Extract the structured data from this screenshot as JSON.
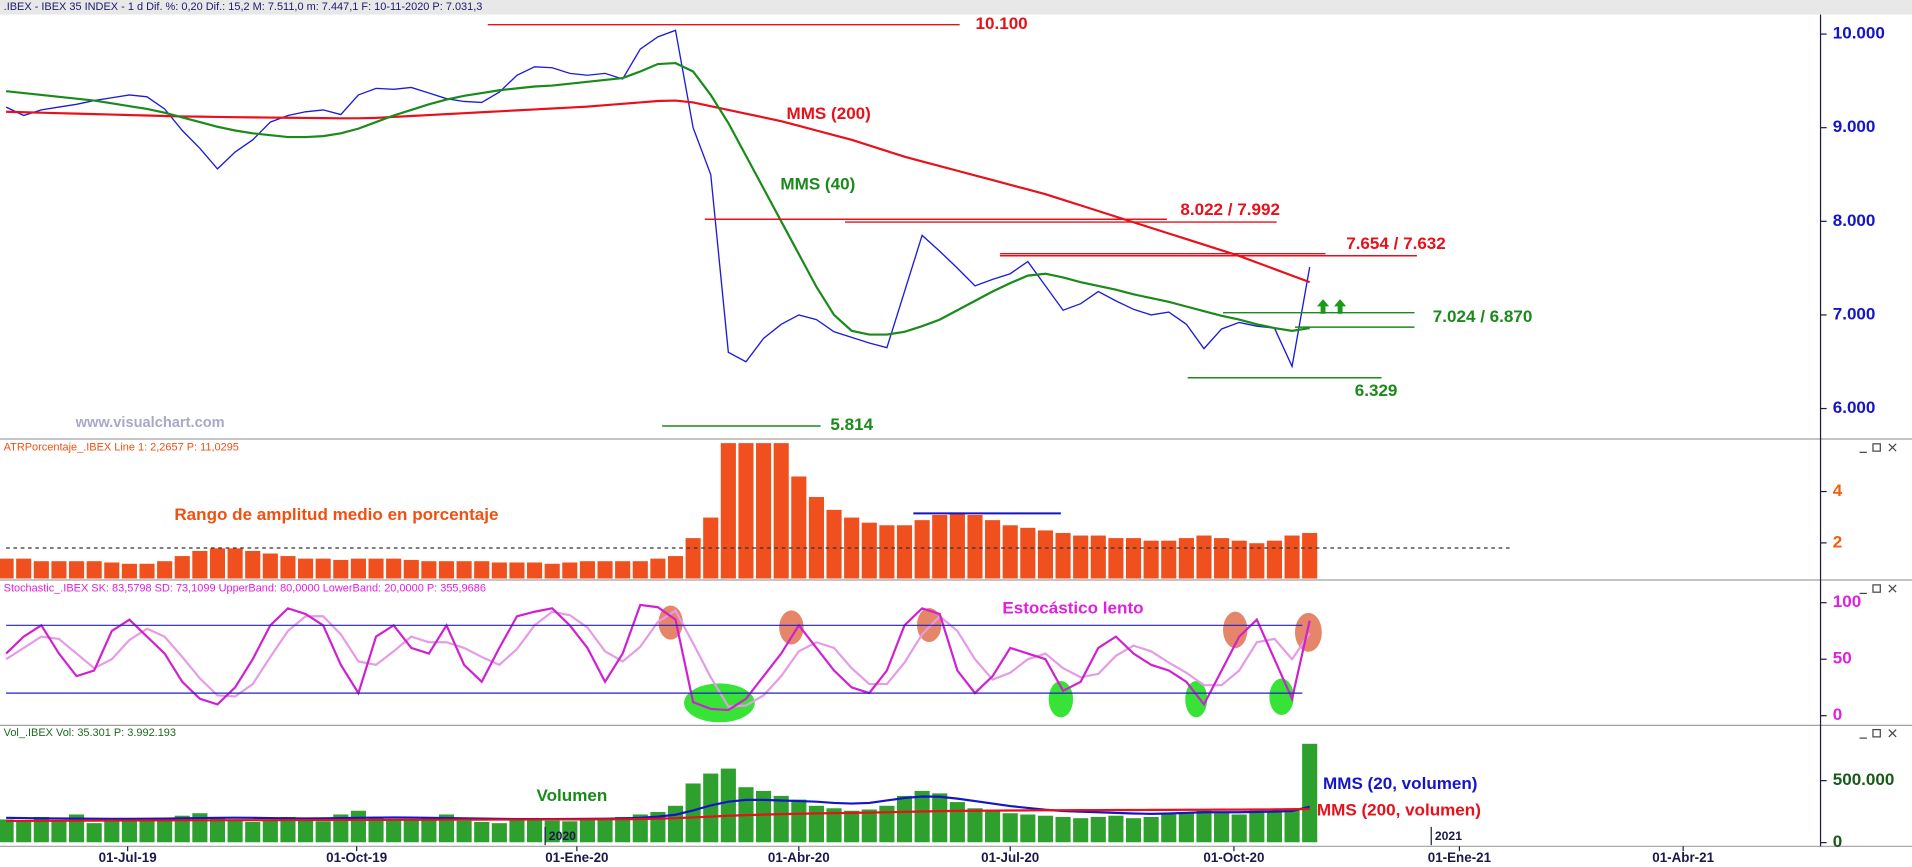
{
  "chart_data": [
    {
      "type": "line",
      "header": ".IBEX - IBEX 35 INDEX - 1 d  Dif. %: 0,20  Dif.: 15,2  M: 7.511,0  m: 7.447,1  F: 10-11-2020  P: 7.031,3",
      "watermark": "www.visualchart.com",
      "ylim": [
        5688,
        10208
      ],
      "yticks": [
        {
          "value": 6000,
          "label": "6.000"
        },
        {
          "value": 7000,
          "label": "7.000"
        },
        {
          "value": 8000,
          "label": "8.000"
        },
        {
          "value": 9000,
          "label": "9.000"
        },
        {
          "value": 10000,
          "label": "10.000"
        }
      ],
      "axis_color": "#1515c8",
      "series": [
        {
          "color": "#1c1cd8",
          "values": [
            9220,
            9130,
            9190,
            9220,
            9250,
            9290,
            9320,
            9350,
            9330,
            9200,
            8970,
            8780,
            8560,
            8740,
            8870,
            9060,
            9130,
            9170,
            9190,
            9140,
            9350,
            9420,
            9410,
            9430,
            9370,
            9310,
            9280,
            9270,
            9380,
            9560,
            9650,
            9640,
            9580,
            9560,
            9580,
            9520,
            9840,
            9970,
            10040,
            9000,
            8500,
            6600,
            6500,
            6750,
            6900,
            7000,
            6950,
            6820,
            6760,
            6700,
            6650,
            7250,
            7850,
            7680,
            7500,
            7310,
            7380,
            7440,
            7570,
            7310,
            7050,
            7120,
            7250,
            7150,
            7060,
            7000,
            7030,
            6900,
            6640,
            6850,
            6920,
            6880,
            6860,
            6450,
            7510
          ]
        },
        {
          "name": "MMS (200)",
          "color": "#e8101a",
          "values": [
            9170,
            9165,
            9160,
            9155,
            9150,
            9145,
            9140,
            9135,
            9130,
            9125,
            9120,
            9118,
            9115,
            9112,
            9110,
            9108,
            9106,
            9104,
            9102,
            9100,
            9100,
            9105,
            9115,
            9125,
            9135,
            9145,
            9155,
            9165,
            9175,
            9185,
            9195,
            9205,
            9215,
            9225,
            9240,
            9255,
            9270,
            9285,
            9290,
            9270,
            9230,
            9190,
            9150,
            9110,
            9070,
            9020,
            8970,
            8920,
            8870,
            8810,
            8750,
            8690,
            8640,
            8590,
            8540,
            8490,
            8440,
            8390,
            8340,
            8290,
            8230,
            8170,
            8110,
            8050,
            7990,
            7930,
            7870,
            7810,
            7750,
            7690,
            7630,
            7560,
            7490,
            7420,
            7350
          ]
        },
        {
          "name": "MMS (40)",
          "color": "#1a8a1a",
          "values": [
            9390,
            9370,
            9350,
            9330,
            9310,
            9290,
            9260,
            9230,
            9200,
            9160,
            9110,
            9060,
            9010,
            8970,
            8940,
            8920,
            8900,
            8900,
            8910,
            8940,
            8990,
            9060,
            9130,
            9190,
            9250,
            9300,
            9340,
            9370,
            9400,
            9420,
            9440,
            9450,
            9470,
            9490,
            9510,
            9530,
            9600,
            9680,
            9690,
            9600,
            9350,
            9050,
            8700,
            8350,
            8000,
            7650,
            7300,
            7000,
            6830,
            6790,
            6790,
            6820,
            6880,
            6950,
            7050,
            7150,
            7250,
            7340,
            7420,
            7440,
            7400,
            7350,
            7310,
            7270,
            7220,
            7180,
            7140,
            7090,
            7040,
            6990,
            6950,
            6900,
            6860,
            6830,
            6860
          ]
        }
      ],
      "levels": [
        {
          "label": "10.100",
          "values": [
            10100
          ],
          "color": "#e8101a"
        },
        {
          "label": "8.022 / 7.992",
          "values": [
            8022,
            7992
          ],
          "color": "#e8101a"
        },
        {
          "label": "7.654 / 7.632",
          "values": [
            7654,
            7632
          ],
          "color": "#e8101a"
        },
        {
          "label": "7.024 / 6.870",
          "values": [
            7024,
            6870
          ],
          "color": "#1a8a1a"
        },
        {
          "label": "6.329",
          "values": [
            6329
          ],
          "color": "#1a8a1a"
        },
        {
          "label": "5.814",
          "values": [
            5814
          ],
          "color": "#1a8a1a"
        }
      ]
    },
    {
      "type": "bar",
      "header": "ATRPorcentaje_.IBEX  Line 1: 2,2657  P: 11,0295",
      "annotation": "Rango de amplitud medio en porcentaje",
      "annotation_color": "#f05010",
      "ylim": [
        0.6,
        6
      ],
      "yticks": [
        2,
        4
      ],
      "axis_color": "#f06010",
      "color": "#f0501e",
      "values": [
        1.4,
        1.4,
        1.3,
        1.3,
        1.3,
        1.3,
        1.25,
        1.2,
        1.2,
        1.3,
        1.5,
        1.7,
        1.8,
        1.8,
        1.7,
        1.6,
        1.5,
        1.4,
        1.4,
        1.35,
        1.4,
        1.4,
        1.4,
        1.35,
        1.3,
        1.3,
        1.3,
        1.3,
        1.25,
        1.25,
        1.25,
        1.2,
        1.25,
        1.3,
        1.3,
        1.3,
        1.3,
        1.4,
        1.5,
        2.2,
        3.0,
        5.9,
        5.9,
        5.9,
        5.9,
        4.6,
        3.8,
        3.3,
        3.0,
        2.8,
        2.7,
        2.7,
        2.9,
        3.1,
        3.2,
        3.1,
        2.9,
        2.7,
        2.6,
        2.5,
        2.4,
        2.3,
        2.3,
        2.2,
        2.2,
        2.1,
        2.1,
        2.2,
        2.3,
        2.2,
        2.1,
        2.0,
        2.1,
        2.3,
        2.4
      ],
      "lines": [
        {
          "value": 1.8,
          "color": "#333333",
          "dashed": true
        },
        {
          "value": 3.15,
          "color": "#1515c8",
          "dashed": false
        }
      ]
    },
    {
      "type": "line",
      "header": "Stochastic_.IBEX  SK: 83,5798  SD: 73,1099  UpperBand: 80,0000  LowerBand: 20,0000  P: 355,9686",
      "annotation": "Estocástico lento",
      "annotation_color": "#e020e0",
      "ylim": [
        -8,
        119
      ],
      "yticks": [
        0,
        50,
        100
      ],
      "axis_color": "#e020e0",
      "bands": [
        80,
        20
      ],
      "band_color": "#2020c0",
      "series": [
        {
          "color": "#e59be5",
          "values": [
            50,
            60,
            70,
            68,
            55,
            42,
            50,
            67,
            77,
            70,
            52,
            33,
            18,
            17,
            28,
            52,
            75,
            88,
            88,
            72,
            48,
            45,
            57,
            70,
            65,
            65,
            60,
            52,
            45,
            59,
            80,
            92,
            89,
            78,
            57,
            48,
            61,
            83,
            93,
            64,
            34,
            8,
            9,
            18,
            35,
            57,
            65,
            60,
            42,
            28,
            28,
            47,
            72,
            88,
            75,
            50,
            32,
            38,
            50,
            55,
            42,
            34,
            37,
            53,
            62,
            57,
            47,
            38,
            27,
            27,
            40,
            65,
            68,
            50,
            73
          ]
        },
        {
          "color": "#d020d0",
          "values": [
            55,
            70,
            80,
            55,
            35,
            40,
            75,
            85,
            70,
            55,
            30,
            15,
            10,
            25,
            50,
            80,
            95,
            90,
            80,
            45,
            20,
            70,
            80,
            60,
            55,
            80,
            45,
            30,
            60,
            88,
            92,
            95,
            80,
            60,
            30,
            55,
            98,
            96,
            85,
            12,
            6,
            5,
            15,
            35,
            55,
            80,
            60,
            40,
            25,
            20,
            40,
            80,
            95,
            90,
            40,
            20,
            35,
            60,
            55,
            50,
            22,
            30,
            60,
            70,
            55,
            45,
            40,
            30,
            10,
            40,
            70,
            85,
            50,
            15,
            84
          ]
        }
      ]
    },
    {
      "type": "bar",
      "header": "Vol_.IBEX  Vol: 35.301  P: 3.992.193",
      "annotation": "Volumen",
      "annotation_color": "#1a8a1a",
      "ylim": [
        -20000,
        941000
      ],
      "yticks": [
        0,
        {
          "value": 500000,
          "label": "500.000"
        }
      ],
      "axis_color": "#1a5a1a",
      "color": "#2ea02e",
      "xlim": [
        0,
        103
      ],
      "xticks": [
        {
          "value": 6.9,
          "label": "01-Jul-19"
        },
        {
          "value": 19.9,
          "label": "01-Oct-19"
        },
        {
          "value": 32.4,
          "label": "01-Ene-20"
        },
        {
          "value": 45,
          "label": "01-Abr-20"
        },
        {
          "value": 57,
          "label": "01-Jul-20"
        },
        {
          "value": 69.7,
          "label": "01-Oct-20"
        },
        {
          "value": 82.5,
          "label": "01-Ene-21"
        },
        {
          "value": 95.2,
          "label": "01-Abr-21"
        }
      ],
      "year_labels": [
        {
          "value": 30.6,
          "label": "2020"
        },
        {
          "value": 80.9,
          "label": "2021"
        }
      ],
      "values": [
        190000,
        170000,
        210000,
        180000,
        230000,
        160000,
        200000,
        185000,
        175000,
        195000,
        220000,
        240000,
        200000,
        180000,
        170000,
        190000,
        210000,
        180000,
        175000,
        230000,
        260000,
        200000,
        190000,
        185000,
        210000,
        230000,
        180000,
        170000,
        160000,
        190000,
        200000,
        180000,
        175000,
        185000,
        190000,
        210000,
        230000,
        250000,
        300000,
        480000,
        560000,
        600000,
        450000,
        420000,
        380000,
        350000,
        300000,
        280000,
        260000,
        270000,
        300000,
        380000,
        420000,
        400000,
        330000,
        280000,
        260000,
        240000,
        230000,
        220000,
        210000,
        200000,
        210000,
        220000,
        200000,
        210000,
        230000,
        250000,
        260000,
        240000,
        230000,
        260000,
        250000,
        280000,
        800000
      ],
      "series": [
        {
          "name": "MMS (20, volumen)",
          "color": "#1515c8",
          "values": [
            200000,
            198000,
            196000,
            195000,
            194000,
            193000,
            192000,
            192000,
            193000,
            194000,
            196000,
            198000,
            200000,
            201000,
            200000,
            198000,
            196000,
            195000,
            196000,
            198000,
            200000,
            202000,
            203000,
            202000,
            200000,
            198000,
            196000,
            194000,
            192000,
            190000,
            190000,
            190000,
            191000,
            192000,
            193000,
            195000,
            200000,
            210000,
            225000,
            260000,
            300000,
            330000,
            345000,
            345000,
            340000,
            335000,
            330000,
            320000,
            315000,
            320000,
            340000,
            360000,
            372000,
            370000,
            355000,
            335000,
            315000,
            295000,
            280000,
            265000,
            255000,
            250000,
            245000,
            240000,
            235000,
            232000,
            235000,
            240000,
            245000,
            245000,
            245000,
            248000,
            250000,
            255000,
            290000
          ]
        },
        {
          "name": "MMS (200, volumen)",
          "color": "#e8101a",
          "values": [
            175000,
            175000,
            176000,
            176000,
            177000,
            177000,
            178000,
            178000,
            179000,
            179000,
            180000,
            180000,
            180000,
            181000,
            181000,
            181000,
            182000,
            182000,
            182000,
            183000,
            183000,
            183000,
            184000,
            184000,
            184000,
            185000,
            185000,
            185000,
            186000,
            186000,
            186000,
            187000,
            187000,
            187000,
            188000,
            188000,
            190000,
            193000,
            197000,
            203000,
            210000,
            217000,
            222000,
            226000,
            230000,
            233000,
            236000,
            238000,
            240000,
            242000,
            245000,
            248000,
            251000,
            254000,
            256000,
            257000,
            258000,
            259000,
            260000,
            261000,
            261000,
            262000,
            262000,
            263000,
            263000,
            264000,
            264000,
            265000,
            265000,
            266000,
            266000,
            267000,
            268000,
            269000,
            272000
          ]
        }
      ]
    }
  ]
}
